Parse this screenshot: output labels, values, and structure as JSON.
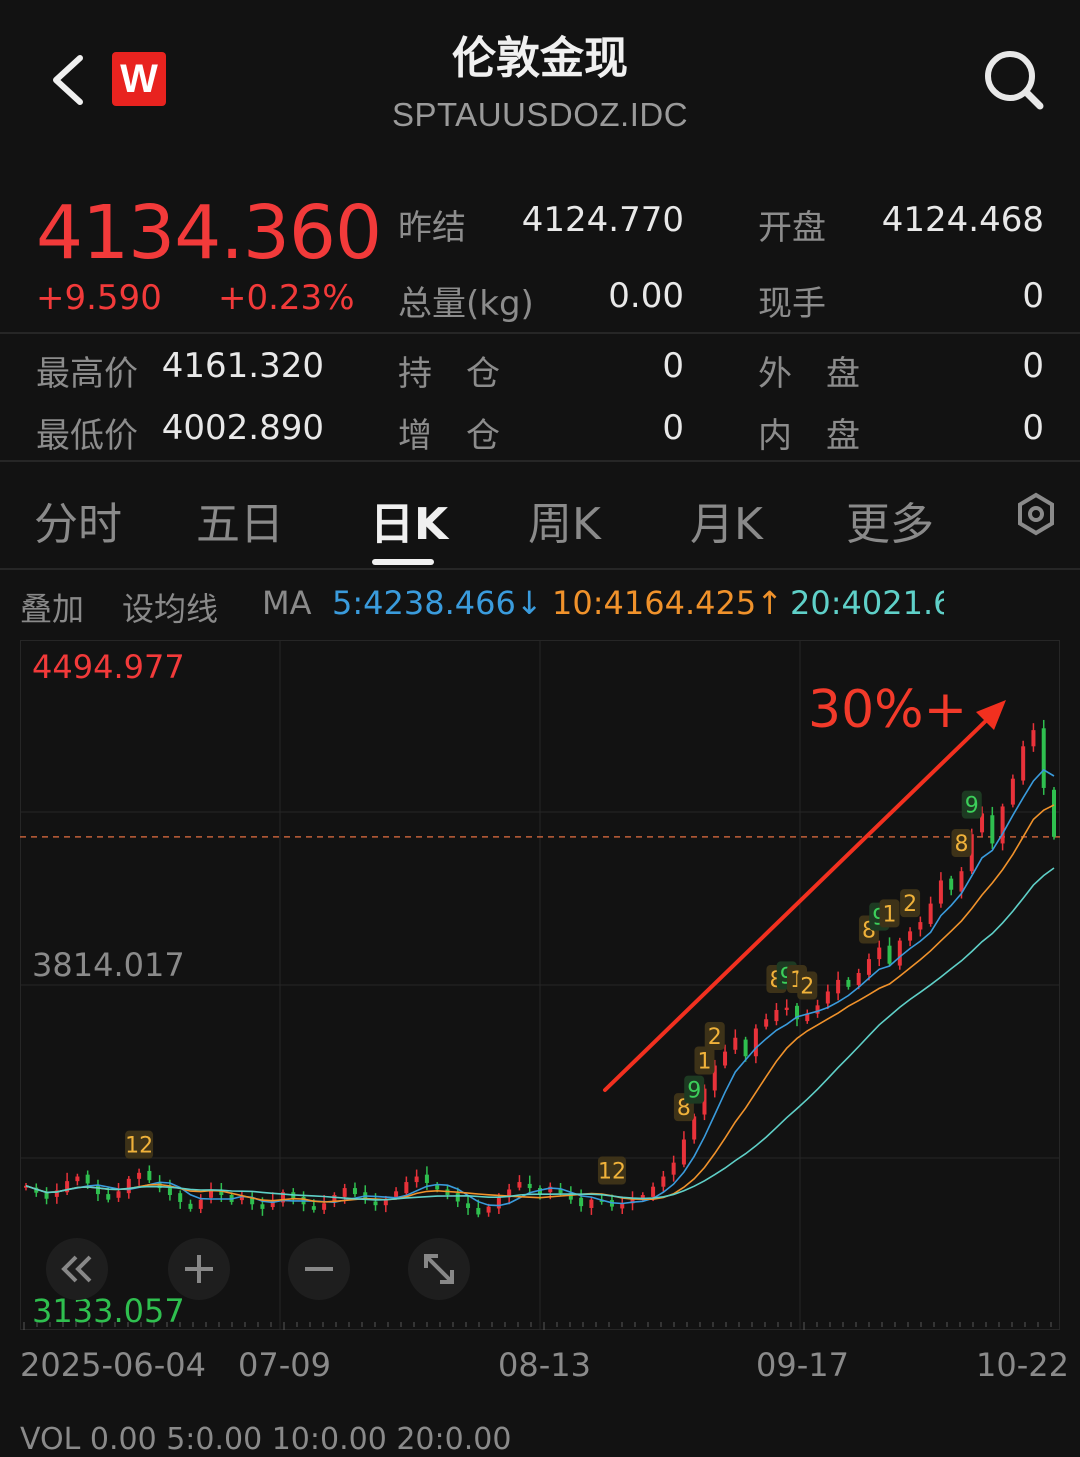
{
  "header": {
    "title": "伦敦金现",
    "subtitle": "SPTAUUSDOZ.IDC",
    "logo_letter": "W"
  },
  "quote": {
    "price": "4134.360",
    "change": "+9.590",
    "change_pct": "+0.23%",
    "fields": [
      {
        "label": "昨结",
        "value": "4124.770"
      },
      {
        "label": "开盘",
        "value": "4124.468"
      },
      {
        "label": "总量(kg)",
        "value": "0.00"
      },
      {
        "label": "现手",
        "value": "0"
      },
      {
        "label": "最高价",
        "value": "4161.320"
      },
      {
        "label": "持　仓",
        "value": "0"
      },
      {
        "label": "外　盘",
        "value": "0"
      },
      {
        "label": "最低价",
        "value": "4002.890"
      },
      {
        "label": "增　仓",
        "value": "0"
      },
      {
        "label": "内　盘",
        "value": "0"
      }
    ]
  },
  "tabs": [
    "分时",
    "五日",
    "日K",
    "周K",
    "月K",
    "更多"
  ],
  "active_tab": "日K",
  "ma_bar": {
    "overlay": "叠加",
    "set_ma": "设均线",
    "ma_label": "MA",
    "ma5": "5:4238.466↓",
    "ma10": "10:4164.425↑",
    "ma20": "20:4021.6",
    "colors": {
      "ma5": "#3a9bdc",
      "ma10": "#f0922b",
      "ma20": "#5fd0c8"
    }
  },
  "chart_data": {
    "type": "candlestick",
    "y_max_label": "4494.977",
    "y_mid_label": "3814.017",
    "y_min_label": "3133.057",
    "ylim": [
      3133.057,
      4494.977
    ],
    "current_price_line": 4134.36,
    "x_labels": [
      "2025-06-04",
      "07-09",
      "08-13",
      "09-17",
      "10-22"
    ],
    "annotation": "30%+",
    "up_color": "#e8323a",
    "down_color": "#2fbf4f",
    "sequence_markers": [
      {
        "label": "12",
        "color": "orange"
      },
      {
        "label": "12",
        "color": "orange"
      },
      {
        "label": "8",
        "color": "orange"
      },
      {
        "label": "9",
        "color": "green"
      },
      {
        "label": "1",
        "color": "orange"
      },
      {
        "label": "2",
        "color": "orange"
      },
      {
        "label": "8",
        "color": "orange"
      },
      {
        "label": "9",
        "color": "green"
      },
      {
        "label": "1",
        "color": "orange"
      },
      {
        "label": "2",
        "color": "orange"
      },
      {
        "label": "8",
        "color": "orange"
      },
      {
        "label": "9",
        "color": "green"
      },
      {
        "label": "1",
        "color": "orange"
      },
      {
        "label": "2",
        "color": "orange"
      },
      {
        "label": "8",
        "color": "orange"
      },
      {
        "label": "9",
        "color": "green"
      }
    ],
    "closes": [
      3380,
      3365,
      3352,
      3370,
      3390,
      3400,
      3385,
      3362,
      3350,
      3368,
      3395,
      3408,
      3392,
      3375,
      3360,
      3345,
      3330,
      3350,
      3372,
      3360,
      3345,
      3358,
      3340,
      3330,
      3348,
      3366,
      3352,
      3340,
      3328,
      3342,
      3360,
      3375,
      3362,
      3350,
      3338,
      3352,
      3368,
      3388,
      3400,
      3386,
      3372,
      3360,
      3346,
      3332,
      3318,
      3335,
      3355,
      3372,
      3388,
      3375,
      3362,
      3378,
      3364,
      3350,
      3336,
      3350,
      3345,
      3335,
      3342,
      3350,
      3360,
      3378,
      3400,
      3430,
      3480,
      3530,
      3590,
      3640,
      3670,
      3700,
      3660,
      3720,
      3740,
      3760,
      3765,
      3740,
      3752,
      3770,
      3800,
      3825,
      3810,
      3840,
      3870,
      3895,
      3860,
      3910,
      3930,
      3950,
      3990,
      4040,
      4020,
      4060,
      4140,
      4185,
      4120,
      4200,
      4260,
      4330,
      4365,
      4240,
      4134.36
    ]
  },
  "chart_controls": [
    "<<",
    "+",
    "−",
    "↘↖"
  ],
  "bottom_indicator": "VOL 0.00 5:0.00 10:0.00 20:0.00"
}
